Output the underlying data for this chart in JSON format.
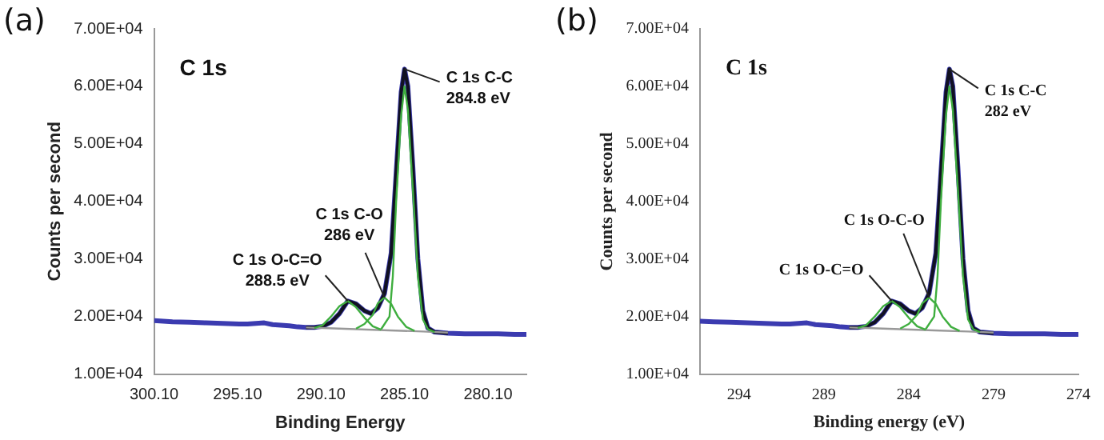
{
  "chart_data": [
    {
      "type": "line",
      "title": "(a)",
      "xlabel": "Binding Energy",
      "ylabel": "Counts per second",
      "legend": false,
      "marker": "none",
      "xlim": [
        300.1,
        277.8
      ],
      "xticks": [
        {
          "value": 300.1,
          "label": "300.10"
        },
        {
          "value": 295.1,
          "label": "295.10"
        },
        {
          "value": 290.1,
          "label": "290.10"
        },
        {
          "value": 285.1,
          "label": "285.10"
        },
        {
          "value": 280.1,
          "label": "280.10"
        }
      ],
      "ylim": [
        10000,
        70000
      ],
      "yticks": [
        {
          "value": 10000,
          "label": "1.00E+04"
        },
        {
          "value": 20000,
          "label": "2.00E+04"
        },
        {
          "value": 30000,
          "label": "3.00E+04"
        },
        {
          "value": 40000,
          "label": "4.00E+04"
        },
        {
          "value": 50000,
          "label": "5.00E+04"
        },
        {
          "value": 60000,
          "label": "6.00E+04"
        },
        {
          "value": 70000,
          "label": "7.00E+04"
        }
      ],
      "annotations": [
        "C 1s",
        {
          "text": "C 1s C-C\n284.8 eV",
          "x": 285.1,
          "y": 63000
        },
        {
          "text": "C 1s C-O\n286 eV",
          "x": 286.3,
          "y": 23300
        },
        {
          "text": "C 1s O-C=O\n288.5 eV",
          "x": 288.5,
          "y": 22700
        }
      ],
      "series": [
        {
          "color": "#3b3bb0",
          "x": [
            300.1,
            299,
            298,
            297,
            296,
            295,
            294.5,
            294,
            293.5,
            293,
            292,
            291.5,
            291,
            290.5,
            290,
            289.5,
            289,
            288.5,
            288,
            287.5,
            287.1,
            286.7,
            286.3,
            285.9,
            285.6,
            285.3,
            285.1,
            284.9,
            284.6,
            284.3,
            284,
            283.7,
            283.3,
            282.5,
            281.5,
            280.5,
            279.5,
            278.5,
            277.8
          ],
          "values": [
            19300,
            19100,
            19000,
            18900,
            18800,
            18700,
            18700,
            18800,
            18900,
            18600,
            18400,
            18200,
            18100,
            18100,
            18300,
            19000,
            20500,
            22700,
            22200,
            21000,
            20500,
            21500,
            24000,
            31000,
            45000,
            59000,
            63000,
            60000,
            46000,
            30000,
            21000,
            18000,
            17300,
            17100,
            17000,
            17000,
            17000,
            16900,
            16900
          ]
        },
        {
          "color": "#111122",
          "x": [
            291,
            290.5,
            290,
            289.5,
            289,
            288.5,
            288,
            287.5,
            287.1,
            286.7,
            286.3,
            285.9,
            285.6,
            285.3,
            285.1,
            284.9,
            284.6,
            284.3,
            284,
            283.7,
            283.3,
            282.5
          ],
          "values": [
            18100,
            18100,
            18300,
            19000,
            20500,
            22700,
            22200,
            21000,
            20500,
            21500,
            24000,
            31000,
            45000,
            59000,
            63000,
            60000,
            46000,
            30000,
            21000,
            18000,
            17300,
            17100
          ]
        },
        {
          "color": "#999999",
          "x": [
            291,
            290,
            288,
            286,
            284,
            282.5
          ],
          "values": [
            18100,
            18000,
            17800,
            17600,
            17400,
            17200
          ]
        },
        {
          "color": "#3fae3f",
          "x": [
            290.5,
            290,
            289.5,
            289,
            288.5,
            288,
            287.5,
            287,
            286.5
          ],
          "values": [
            18000,
            18500,
            20000,
            21800,
            22700,
            21600,
            19800,
            18300,
            17700
          ]
        },
        {
          "color": "#3fae3f",
          "x": [
            288,
            287.5,
            287,
            286.7,
            286.3,
            285.9,
            285.5,
            285,
            284.5
          ],
          "values": [
            17900,
            18700,
            20300,
            22300,
            23300,
            22200,
            20000,
            18200,
            17500
          ]
        },
        {
          "color": "#3fae3f",
          "x": [
            286.5,
            286,
            285.8,
            285.6,
            285.3,
            285.1,
            284.9,
            284.6,
            284.3,
            284,
            283.7,
            283.3
          ],
          "values": [
            17800,
            20000,
            27000,
            40000,
            55000,
            60000,
            56000,
            42000,
            27000,
            19500,
            17800,
            17300
          ]
        }
      ]
    },
    {
      "type": "line",
      "title": "(b)",
      "xlabel": "Binding energy (eV)",
      "ylabel": "Counts per second",
      "legend": false,
      "marker": "none",
      "xlim": [
        296.3,
        274
      ],
      "xticks": [
        294,
        289,
        284,
        279,
        274
      ],
      "ylim": [
        10000,
        70000
      ],
      "yticks": [
        {
          "value": 10000,
          "label": "1.00E+04"
        },
        {
          "value": 20000,
          "label": "2.00E+04"
        },
        {
          "value": 30000,
          "label": "3.00E+04"
        },
        {
          "value": 40000,
          "label": "4.00E+04"
        },
        {
          "value": 50000,
          "label": "5.00E+04"
        },
        {
          "value": 60000,
          "label": "6.00E+04"
        },
        {
          "value": 70000,
          "label": "7.00E+04"
        }
      ],
      "annotations": [
        "C 1s",
        {
          "text": "C 1s C-C\n282 eV",
          "x": 281.6,
          "y": 63000
        },
        {
          "text": "C 1s O-C-O",
          "x": 282.8,
          "y": 23300
        },
        {
          "text": "C 1s O-C=O",
          "x": 285,
          "y": 22700
        }
      ],
      "series": [
        {
          "color": "#3b3bb0",
          "x": [
            296.3,
            295.5,
            294.5,
            293.5,
            292.5,
            291.5,
            291,
            290.5,
            290,
            289.5,
            288.5,
            288,
            287.5,
            287,
            286.5,
            286,
            285.5,
            285,
            284.5,
            284,
            283.6,
            283.2,
            282.8,
            282.4,
            282.1,
            281.8,
            281.6,
            281.4,
            281.1,
            280.8,
            280.5,
            280.2,
            279.8,
            279,
            278,
            277,
            276,
            275,
            274
          ],
          "values": [
            19200,
            19100,
            19000,
            18900,
            18800,
            18700,
            18700,
            18800,
            18900,
            18600,
            18400,
            18200,
            18100,
            18100,
            18300,
            19000,
            20500,
            22700,
            22200,
            21000,
            20500,
            21500,
            24000,
            31000,
            45000,
            59000,
            63000,
            60000,
            46000,
            30000,
            21000,
            18000,
            17300,
            17100,
            17000,
            17000,
            17000,
            16900,
            16900
          ]
        },
        {
          "color": "#111122",
          "x": [
            287.5,
            287,
            286.5,
            286,
            285.5,
            285,
            284.5,
            284,
            283.6,
            283.2,
            282.8,
            282.4,
            282.1,
            281.8,
            281.6,
            281.4,
            281.1,
            280.8,
            280.5,
            280.2,
            279.8,
            279
          ],
          "values": [
            18100,
            18100,
            18300,
            19000,
            20500,
            22700,
            22200,
            21000,
            20500,
            21500,
            24000,
            31000,
            45000,
            59000,
            63000,
            60000,
            46000,
            30000,
            21000,
            18000,
            17300,
            17100
          ]
        },
        {
          "color": "#999999",
          "x": [
            287.5,
            286.5,
            284.5,
            282.5,
            280.5,
            279
          ],
          "values": [
            18100,
            18000,
            17800,
            17600,
            17400,
            17200
          ]
        },
        {
          "color": "#3fae3f",
          "x": [
            287,
            286.5,
            286,
            285.5,
            285,
            284.5,
            284,
            283.5,
            283
          ],
          "values": [
            18000,
            18500,
            20000,
            21800,
            22700,
            21600,
            19800,
            18300,
            17700
          ]
        },
        {
          "color": "#3fae3f",
          "x": [
            284.5,
            284,
            283.5,
            283.2,
            282.8,
            282.4,
            282,
            281.5,
            281
          ],
          "values": [
            17900,
            18700,
            20300,
            22300,
            23300,
            22200,
            20000,
            18200,
            17500
          ]
        },
        {
          "color": "#3fae3f",
          "x": [
            283,
            282.5,
            282.3,
            282.1,
            281.8,
            281.6,
            281.4,
            281.1,
            280.8,
            280.5,
            280.2,
            279.8
          ],
          "values": [
            17800,
            20000,
            27000,
            40000,
            55000,
            60000,
            56000,
            42000,
            27000,
            19500,
            17800,
            17300
          ]
        }
      ]
    }
  ]
}
